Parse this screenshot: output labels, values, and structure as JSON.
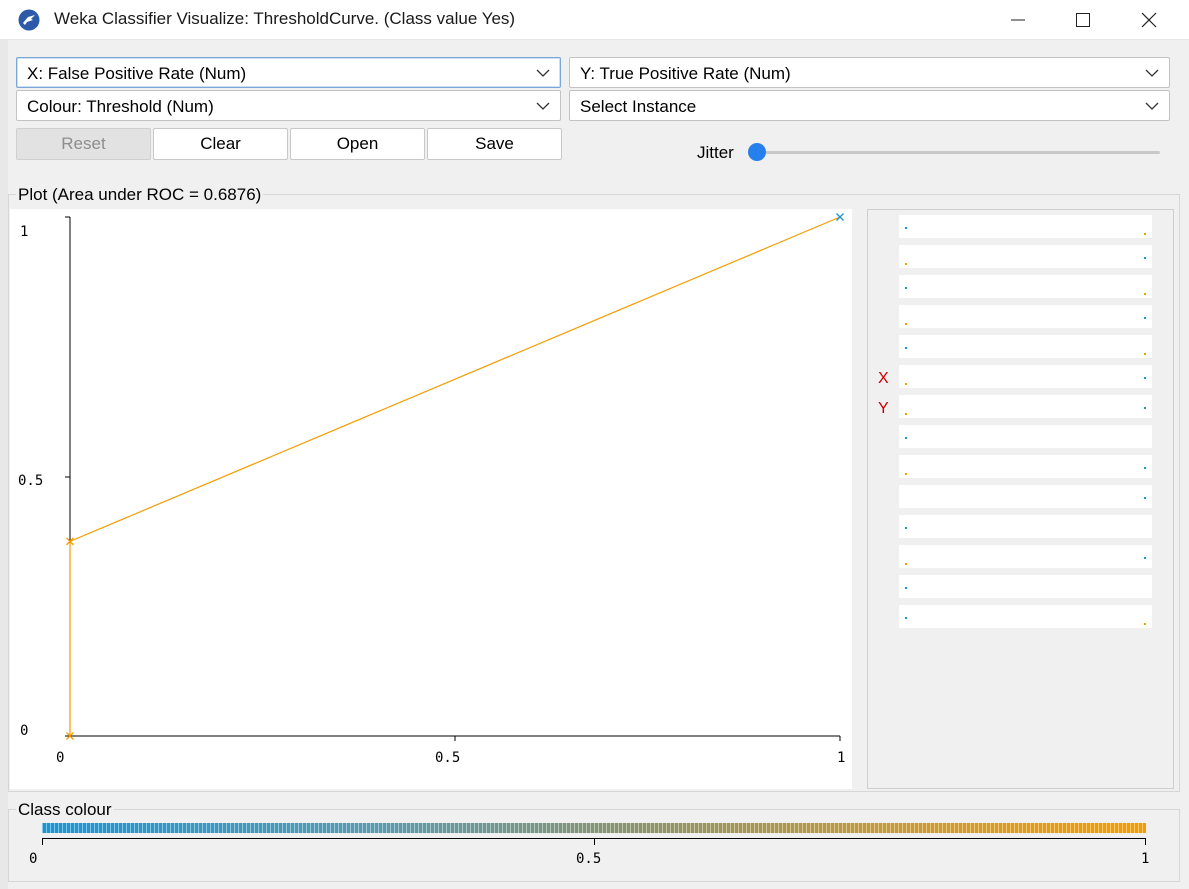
{
  "window": {
    "title": "Weka Classifier Visualize: ThresholdCurve. (Class value Yes)",
    "icon": "weka-bird-icon"
  },
  "controls": {
    "x_axis": "X: False Positive Rate (Num)",
    "y_axis": "Y: True Positive Rate (Num)",
    "colour": "Colour: Threshold (Num)",
    "instance": "Select Instance",
    "reset_label": "Reset",
    "clear_label": "Clear",
    "open_label": "Open",
    "save_label": "Save",
    "jitter_label": "Jitter",
    "jitter_value": 0
  },
  "plot": {
    "title": "Plot (Area under ROC = 0.6876)",
    "x_ticks": [
      "0",
      "0.5",
      "1"
    ],
    "y_ticks": [
      "0",
      "0.5",
      "1"
    ]
  },
  "chart_data": {
    "type": "line",
    "xlabel": "False Positive Rate",
    "ylabel": "True Positive Rate",
    "xlim": [
      0,
      1
    ],
    "ylim": [
      0,
      1
    ],
    "series": [
      {
        "x": [
          0,
          0,
          1
        ],
        "y": [
          0,
          0.375,
          1
        ],
        "point_colors": [
          "#f59c00",
          "#f59c00",
          "#1a95d4"
        ]
      }
    ],
    "line_color": "#f59c00",
    "marker": "x"
  },
  "side_panel": {
    "x_label": "X",
    "y_label": "Y",
    "colors": {
      "blue": "#1a95d4",
      "orange": "#f59c00"
    }
  },
  "class_colour": {
    "title": "Class colour",
    "ticks": [
      "0",
      "0.5",
      "1"
    ]
  }
}
